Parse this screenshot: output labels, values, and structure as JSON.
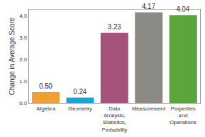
{
  "chart_data": {
    "type": "bar",
    "y_label": "Change in Average Score",
    "categories": [
      "Algebra",
      "Geometry",
      "Data Analysis, Statistics, Probability",
      "Measurement",
      "Properties and Operations"
    ],
    "values": [
      0.5,
      0.24,
      3.23,
      4.17,
      4.04
    ],
    "value_labels": [
      "0.50",
      "0.24",
      "3.23",
      "4.17",
      "4.04"
    ],
    "colors": [
      "#f0a030",
      "#1ba3d4",
      "#a5527c",
      "#8c8a86",
      "#5ca53a"
    ],
    "ylim": [
      0,
      4.3
    ],
    "yticks": [
      {
        "value": 0,
        "label": "0.0"
      },
      {
        "value": 1,
        "label": "1.0"
      },
      {
        "value": 2,
        "label": "2.0"
      },
      {
        "value": 3,
        "label": "3.0"
      },
      {
        "value": 4,
        "label": "4.0"
      }
    ],
    "grid": false,
    "data_labels": true
  }
}
